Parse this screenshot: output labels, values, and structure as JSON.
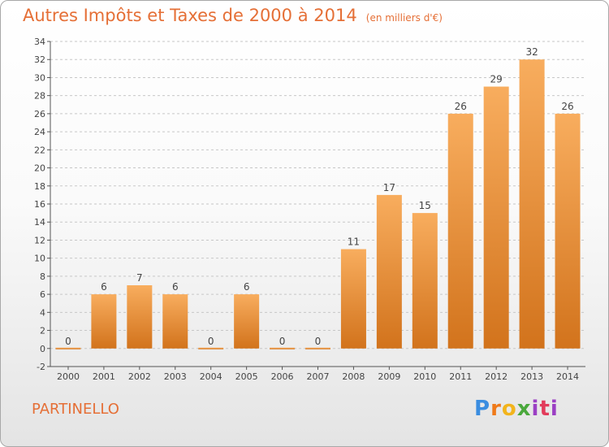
{
  "title": "Autres Impôts et Taxes de 2000 à 2014",
  "unit_label": "(en milliers d'€)",
  "place_name": "PARTINELLO",
  "brand": "Proxiti",
  "colors": {
    "accent": "#e56f36",
    "bar_light": "#f8ad5e",
    "bar_dark": "#d2731c",
    "grid": "#c7c7c7"
  },
  "chart_data": {
    "type": "bar",
    "categories": [
      "2000",
      "2001",
      "2002",
      "2003",
      "2004",
      "2005",
      "2006",
      "2007",
      "2008",
      "2009",
      "2010",
      "2011",
      "2012",
      "2013",
      "2014"
    ],
    "values": [
      0,
      6,
      7,
      6,
      0,
      6,
      0,
      0,
      11,
      17,
      15,
      26,
      29,
      32,
      26
    ],
    "ylim": [
      -2,
      34
    ],
    "yticks": [
      -2,
      0,
      2,
      4,
      6,
      8,
      10,
      12,
      14,
      16,
      18,
      20,
      22,
      24,
      26,
      28,
      30,
      32,
      34
    ],
    "grid": true,
    "data_labels": true
  }
}
